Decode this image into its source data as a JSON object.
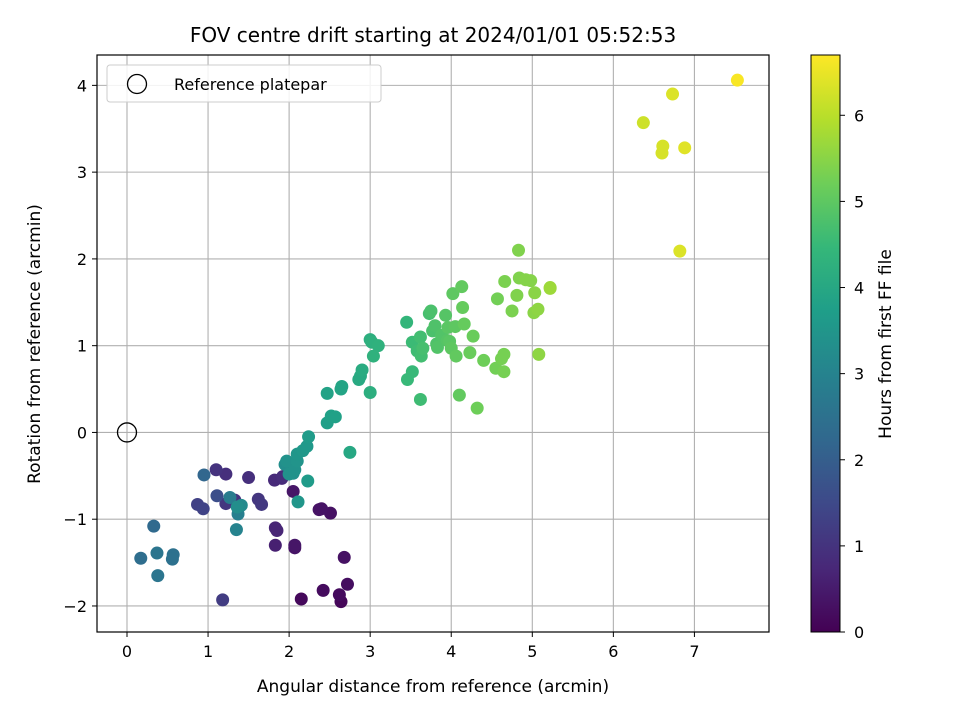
{
  "chart_data": {
    "type": "scatter",
    "title": "FOV centre drift starting at 2024/01/01 05:52:53",
    "xlabel": "Angular distance from reference (arcmin)",
    "ylabel": "Rotation from reference (arcmin)",
    "xlim": [
      -0.37,
      7.92
    ],
    "ylim": [
      -2.3,
      4.35
    ],
    "xticks": [
      0,
      1,
      2,
      3,
      4,
      5,
      6,
      7
    ],
    "yticks": [
      -2,
      -1,
      0,
      1,
      2,
      3,
      4
    ],
    "grid": true,
    "legend": {
      "placement": "top-left",
      "label": "Reference platepar"
    },
    "reference_point": {
      "x": 0,
      "y": 0
    },
    "colorbar": {
      "label": "Hours from first FF file",
      "range": [
        0,
        6.7
      ],
      "ticks": [
        0,
        1,
        2,
        3,
        4,
        5,
        6
      ],
      "colormap": [
        "#440154",
        "#482878",
        "#3e4989",
        "#31688e",
        "#26828e",
        "#1f9e89",
        "#35b779",
        "#6ece58",
        "#b5de2b",
        "#fde725"
      ]
    },
    "points": [
      {
        "x": 2.64,
        "y": -1.95,
        "h": 0.1
      },
      {
        "x": 2.15,
        "y": -1.92,
        "h": 0.15
      },
      {
        "x": 2.62,
        "y": -1.87,
        "h": 0.2
      },
      {
        "x": 2.42,
        "y": -1.82,
        "h": 0.2
      },
      {
        "x": 2.72,
        "y": -1.75,
        "h": 0.25
      },
      {
        "x": 2.68,
        "y": -1.44,
        "h": 0.3
      },
      {
        "x": 2.07,
        "y": -1.33,
        "h": 0.35
      },
      {
        "x": 2.07,
        "y": -1.3,
        "h": 0.4
      },
      {
        "x": 2.51,
        "y": -0.93,
        "h": 0.3
      },
      {
        "x": 2.37,
        "y": -0.89,
        "h": 0.35
      },
      {
        "x": 2.4,
        "y": -0.88,
        "h": 0.35
      },
      {
        "x": 2.05,
        "y": -0.68,
        "h": 0.4
      },
      {
        "x": 1.83,
        "y": -1.3,
        "h": 0.6
      },
      {
        "x": 1.83,
        "y": -1.1,
        "h": 0.7
      },
      {
        "x": 1.85,
        "y": -1.13,
        "h": 0.7
      },
      {
        "x": 1.82,
        "y": -0.55,
        "h": 0.8
      },
      {
        "x": 1.91,
        "y": -0.53,
        "h": 0.8
      },
      {
        "x": 1.92,
        "y": -0.51,
        "h": 0.85
      },
      {
        "x": 1.5,
        "y": -0.52,
        "h": 0.9
      },
      {
        "x": 1.22,
        "y": -0.48,
        "h": 0.9
      },
      {
        "x": 1.1,
        "y": -0.43,
        "h": 1.0
      },
      {
        "x": 1.33,
        "y": -0.78,
        "h": 1.0
      },
      {
        "x": 1.22,
        "y": -0.82,
        "h": 1.05
      },
      {
        "x": 1.62,
        "y": -0.77,
        "h": 1.05
      },
      {
        "x": 1.66,
        "y": -0.83,
        "h": 1.1
      },
      {
        "x": 1.18,
        "y": -1.93,
        "h": 1.2
      },
      {
        "x": 0.87,
        "y": -0.83,
        "h": 1.3
      },
      {
        "x": 0.94,
        "y": -0.88,
        "h": 1.35
      },
      {
        "x": 1.11,
        "y": -0.73,
        "h": 1.6
      },
      {
        "x": 0.95,
        "y": -0.49,
        "h": 2.2
      },
      {
        "x": 0.33,
        "y": -1.08,
        "h": 2.3
      },
      {
        "x": 0.17,
        "y": -1.45,
        "h": 2.4
      },
      {
        "x": 0.57,
        "y": -1.41,
        "h": 2.5
      },
      {
        "x": 0.56,
        "y": -1.46,
        "h": 2.5
      },
      {
        "x": 0.37,
        "y": -1.39,
        "h": 2.6
      },
      {
        "x": 0.38,
        "y": -1.65,
        "h": 2.6
      },
      {
        "x": 1.27,
        "y": -0.75,
        "h": 2.8
      },
      {
        "x": 1.37,
        "y": -0.94,
        "h": 2.9
      },
      {
        "x": 1.35,
        "y": -1.12,
        "h": 3.0
      },
      {
        "x": 1.41,
        "y": -0.84,
        "h": 3.2
      },
      {
        "x": 1.36,
        "y": -0.86,
        "h": 3.3
      },
      {
        "x": 2.11,
        "y": -0.8,
        "h": 3.5
      },
      {
        "x": 1.95,
        "y": -0.37,
        "h": 3.3
      },
      {
        "x": 2.02,
        "y": -0.4,
        "h": 3.3
      },
      {
        "x": 2.05,
        "y": -0.47,
        "h": 3.35
      },
      {
        "x": 1.97,
        "y": -0.33,
        "h": 3.4
      },
      {
        "x": 2.07,
        "y": -0.43,
        "h": 3.4
      },
      {
        "x": 2.0,
        "y": -0.48,
        "h": 3.4
      },
      {
        "x": 2.1,
        "y": -0.33,
        "h": 3.45
      },
      {
        "x": 2.1,
        "y": -0.25,
        "h": 3.5
      },
      {
        "x": 2.17,
        "y": -0.21,
        "h": 3.55
      },
      {
        "x": 2.22,
        "y": -0.16,
        "h": 3.6
      },
      {
        "x": 2.24,
        "y": -0.05,
        "h": 3.65
      },
      {
        "x": 2.23,
        "y": -0.56,
        "h": 3.65
      },
      {
        "x": 2.47,
        "y": 0.11,
        "h": 3.75
      },
      {
        "x": 2.52,
        "y": 0.19,
        "h": 3.8
      },
      {
        "x": 2.57,
        "y": 0.18,
        "h": 3.8
      },
      {
        "x": 2.47,
        "y": 0.45,
        "h": 3.85
      },
      {
        "x": 2.64,
        "y": 0.5,
        "h": 3.9
      },
      {
        "x": 2.65,
        "y": 0.53,
        "h": 3.9
      },
      {
        "x": 2.75,
        "y": -0.23,
        "h": 4.0
      },
      {
        "x": 2.86,
        "y": 0.61,
        "h": 4.05
      },
      {
        "x": 2.88,
        "y": 0.65,
        "h": 4.05
      },
      {
        "x": 2.9,
        "y": 0.72,
        "h": 4.1
      },
      {
        "x": 3.0,
        "y": 0.46,
        "h": 4.2
      },
      {
        "x": 3.0,
        "y": 1.07,
        "h": 4.2
      },
      {
        "x": 3.02,
        "y": 1.04,
        "h": 4.25
      },
      {
        "x": 3.04,
        "y": 0.88,
        "h": 4.3
      },
      {
        "x": 3.1,
        "y": 1.0,
        "h": 4.3
      },
      {
        "x": 3.45,
        "y": 1.27,
        "h": 4.4
      },
      {
        "x": 3.46,
        "y": 0.61,
        "h": 4.5
      },
      {
        "x": 3.52,
        "y": 0.7,
        "h": 4.5
      },
      {
        "x": 3.52,
        "y": 1.04,
        "h": 4.55
      },
      {
        "x": 3.58,
        "y": 0.94,
        "h": 4.6
      },
      {
        "x": 3.62,
        "y": 0.38,
        "h": 4.6
      },
      {
        "x": 3.62,
        "y": 1.1,
        "h": 4.65
      },
      {
        "x": 3.63,
        "y": 0.88,
        "h": 4.65
      },
      {
        "x": 3.65,
        "y": 0.97,
        "h": 4.7
      },
      {
        "x": 3.73,
        "y": 1.37,
        "h": 4.7
      },
      {
        "x": 3.75,
        "y": 1.4,
        "h": 4.75
      },
      {
        "x": 3.77,
        "y": 1.17,
        "h": 4.75
      },
      {
        "x": 3.8,
        "y": 1.23,
        "h": 4.8
      },
      {
        "x": 3.82,
        "y": 1.02,
        "h": 4.8
      },
      {
        "x": 3.83,
        "y": 0.98,
        "h": 4.85
      },
      {
        "x": 3.88,
        "y": 1.12,
        "h": 4.85
      },
      {
        "x": 3.93,
        "y": 1.35,
        "h": 4.9
      },
      {
        "x": 3.95,
        "y": 1.06,
        "h": 4.9
      },
      {
        "x": 3.96,
        "y": 1.21,
        "h": 4.95
      },
      {
        "x": 3.98,
        "y": 1.05,
        "h": 4.95
      },
      {
        "x": 4.0,
        "y": 0.97,
        "h": 5.0
      },
      {
        "x": 4.02,
        "y": 1.6,
        "h": 5.0
      },
      {
        "x": 4.05,
        "y": 1.22,
        "h": 5.0
      },
      {
        "x": 4.06,
        "y": 0.88,
        "h": 5.05
      },
      {
        "x": 4.1,
        "y": 0.43,
        "h": 5.05
      },
      {
        "x": 4.13,
        "y": 1.68,
        "h": 5.05
      },
      {
        "x": 4.14,
        "y": 1.44,
        "h": 5.1
      },
      {
        "x": 4.16,
        "y": 1.25,
        "h": 5.1
      },
      {
        "x": 4.23,
        "y": 0.92,
        "h": 5.15
      },
      {
        "x": 4.27,
        "y": 1.11,
        "h": 5.15
      },
      {
        "x": 4.32,
        "y": 0.28,
        "h": 5.2
      },
      {
        "x": 4.4,
        "y": 0.83,
        "h": 5.2
      },
      {
        "x": 4.55,
        "y": 0.74,
        "h": 5.25
      },
      {
        "x": 4.57,
        "y": 1.54,
        "h": 5.25
      },
      {
        "x": 4.62,
        "y": 0.85,
        "h": 5.3
      },
      {
        "x": 4.65,
        "y": 0.9,
        "h": 5.3
      },
      {
        "x": 4.65,
        "y": 0.7,
        "h": 5.3
      },
      {
        "x": 4.66,
        "y": 1.74,
        "h": 5.35
      },
      {
        "x": 4.75,
        "y": 1.4,
        "h": 5.35
      },
      {
        "x": 4.81,
        "y": 1.58,
        "h": 5.4
      },
      {
        "x": 4.83,
        "y": 2.1,
        "h": 5.4
      },
      {
        "x": 4.84,
        "y": 1.78,
        "h": 5.4
      },
      {
        "x": 4.92,
        "y": 1.76,
        "h": 5.45
      },
      {
        "x": 4.98,
        "y": 1.75,
        "h": 5.45
      },
      {
        "x": 5.02,
        "y": 1.38,
        "h": 5.5
      },
      {
        "x": 5.03,
        "y": 1.61,
        "h": 5.5
      },
      {
        "x": 5.07,
        "y": 1.42,
        "h": 5.55
      },
      {
        "x": 5.08,
        "y": 0.9,
        "h": 5.55
      },
      {
        "x": 5.22,
        "y": 1.67,
        "h": 5.7
      },
      {
        "x": 5.22,
        "y": 1.66,
        "h": 5.7
      },
      {
        "x": 6.37,
        "y": 3.57,
        "h": 6.2
      },
      {
        "x": 6.6,
        "y": 3.22,
        "h": 6.3
      },
      {
        "x": 6.61,
        "y": 3.3,
        "h": 6.3
      },
      {
        "x": 6.73,
        "y": 3.9,
        "h": 6.35
      },
      {
        "x": 6.82,
        "y": 2.09,
        "h": 6.35
      },
      {
        "x": 6.88,
        "y": 3.28,
        "h": 6.4
      },
      {
        "x": 7.53,
        "y": 4.06,
        "h": 6.65
      }
    ]
  }
}
